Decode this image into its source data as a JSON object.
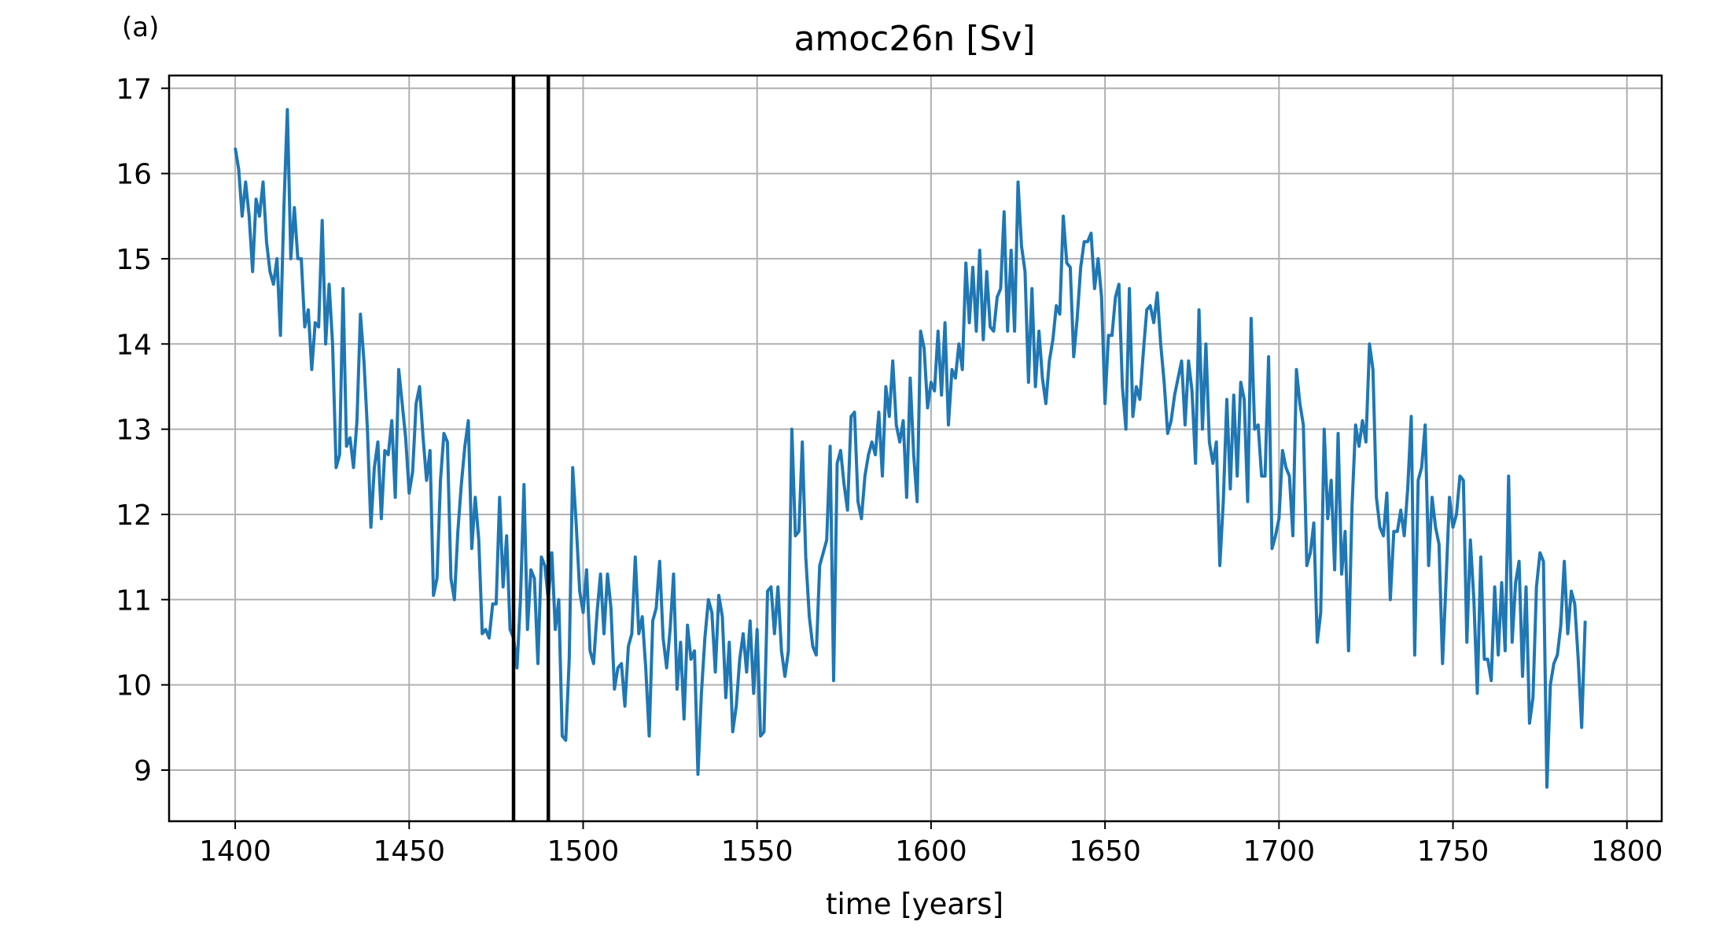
{
  "panel_label": "(a)",
  "chart_data": {
    "type": "line",
    "title": "amoc26n [Sv]",
    "xlabel": "time [years]",
    "ylabel": "",
    "xlim": [
      1381,
      1810
    ],
    "ylim": [
      8.4,
      17.15
    ],
    "xticks": [
      1400,
      1450,
      1500,
      1550,
      1600,
      1650,
      1700,
      1750,
      1800
    ],
    "yticks": [
      9,
      10,
      11,
      12,
      13,
      14,
      15,
      16,
      17
    ],
    "grid": true,
    "colors": {
      "series": "#1f77b4",
      "vlines": "#000000",
      "grid": "#b0b0b0"
    },
    "vlines": [
      1480,
      1490
    ],
    "series": [
      {
        "x_start": 1400,
        "x_step": 1,
        "values": [
          16.3,
          16.05,
          15.5,
          15.9,
          15.5,
          14.85,
          15.7,
          15.5,
          15.9,
          15.2,
          14.85,
          14.7,
          15.0,
          14.1,
          15.6,
          16.75,
          15.0,
          15.6,
          15.0,
          15.0,
          14.2,
          14.4,
          13.7,
          14.25,
          14.2,
          15.45,
          14.0,
          14.7,
          14.0,
          12.55,
          12.7,
          14.65,
          12.8,
          12.9,
          12.55,
          13.1,
          14.35,
          13.8,
          13.0,
          11.85,
          12.55,
          12.85,
          11.95,
          12.75,
          12.7,
          13.1,
          12.2,
          13.7,
          13.3,
          12.9,
          12.25,
          12.5,
          13.3,
          13.5,
          12.9,
          12.4,
          12.75,
          11.05,
          11.25,
          12.4,
          12.95,
          12.85,
          11.25,
          11.0,
          11.8,
          12.35,
          12.8,
          13.1,
          11.6,
          12.2,
          11.7,
          10.6,
          10.65,
          10.55,
          10.95,
          10.95,
          12.2,
          11.15,
          11.75,
          10.65,
          10.55,
          10.2,
          11.0,
          12.35,
          10.65,
          11.35,
          11.25,
          10.25,
          11.5,
          11.4,
          11.0,
          11.55,
          10.65,
          11.0,
          9.4,
          9.35,
          10.3,
          12.55,
          11.9,
          11.1,
          10.85,
          11.35,
          10.4,
          10.25,
          10.85,
          11.3,
          10.6,
          11.3,
          10.9,
          9.95,
          10.2,
          10.25,
          9.75,
          10.45,
          10.6,
          11.5,
          10.6,
          10.8,
          10.2,
          9.4,
          10.75,
          10.9,
          11.45,
          10.55,
          10.2,
          10.65,
          11.3,
          9.95,
          10.5,
          9.6,
          10.7,
          10.3,
          10.4,
          8.95,
          9.9,
          10.55,
          11.0,
          10.85,
          10.15,
          11.05,
          10.8,
          9.85,
          10.5,
          9.45,
          9.75,
          10.3,
          10.6,
          10.15,
          10.75,
          9.9,
          10.65,
          9.4,
          9.45,
          11.1,
          11.15,
          10.6,
          11.15,
          10.4,
          10.1,
          10.4,
          13.0,
          11.75,
          11.8,
          12.85,
          11.5,
          10.8,
          10.45,
          10.35,
          11.4,
          11.55,
          11.7,
          12.8,
          10.05,
          12.6,
          12.75,
          12.35,
          12.05,
          13.15,
          13.2,
          12.15,
          11.95,
          12.45,
          12.7,
          12.85,
          12.7,
          13.2,
          12.45,
          13.5,
          13.15,
          13.8,
          13.05,
          12.85,
          13.1,
          12.2,
          13.6,
          12.7,
          12.15,
          14.15,
          13.95,
          13.25,
          13.55,
          13.45,
          14.15,
          13.4,
          14.25,
          13.05,
          13.7,
          13.6,
          14.0,
          13.7,
          14.95,
          14.25,
          14.9,
          14.15,
          15.1,
          14.05,
          14.85,
          14.2,
          14.15,
          14.55,
          14.65,
          15.55,
          14.15,
          15.1,
          14.15,
          15.9,
          15.15,
          14.85,
          13.55,
          14.65,
          13.5,
          14.15,
          13.6,
          13.3,
          13.8,
          14.05,
          14.45,
          14.35,
          15.5,
          14.95,
          14.9,
          13.85,
          14.3,
          14.9,
          15.2,
          15.2,
          15.3,
          14.65,
          15.0,
          14.55,
          13.3,
          14.1,
          14.1,
          14.55,
          14.7,
          13.5,
          13.0,
          14.65,
          13.15,
          13.5,
          13.35,
          13.9,
          14.4,
          14.45,
          14.25,
          14.6,
          14.0,
          13.55,
          12.95,
          13.1,
          13.4,
          13.6,
          13.8,
          13.05,
          13.8,
          13.45,
          12.6,
          14.4,
          13.0,
          14.0,
          12.85,
          12.6,
          12.85,
          11.4,
          12.15,
          13.35,
          12.3,
          13.4,
          12.45,
          13.55,
          13.35,
          12.15,
          14.3,
          13.0,
          13.05,
          12.45,
          12.45,
          13.85,
          11.6,
          11.75,
          11.95,
          12.75,
          12.55,
          12.45,
          11.75,
          13.7,
          13.3,
          13.05,
          11.4,
          11.55,
          11.9,
          10.5,
          10.85,
          13.0,
          11.95,
          12.4,
          11.35,
          12.95,
          11.3,
          11.8,
          10.4,
          12.1,
          13.05,
          12.8,
          13.1,
          12.85,
          14.0,
          13.7,
          12.2,
          11.85,
          11.75,
          12.25,
          11.0,
          11.8,
          11.8,
          12.05,
          11.75,
          12.3,
          13.15,
          10.35,
          12.4,
          12.55,
          13.05,
          11.4,
          12.2,
          11.85,
          11.65,
          10.25,
          11.2,
          12.2,
          11.85,
          12.0,
          12.45,
          12.4,
          10.5,
          11.7,
          11.0,
          9.9,
          11.5,
          10.3,
          10.3,
          10.05,
          11.15,
          10.35,
          11.2,
          10.4,
          12.45,
          10.5,
          11.2,
          11.45,
          10.1,
          11.15,
          9.55,
          9.85,
          11.15,
          11.55,
          11.45,
          8.8,
          10.0,
          10.25,
          10.35,
          10.7,
          11.45,
          10.6,
          11.1,
          10.95,
          10.3,
          9.5,
          10.75
        ]
      }
    ]
  }
}
